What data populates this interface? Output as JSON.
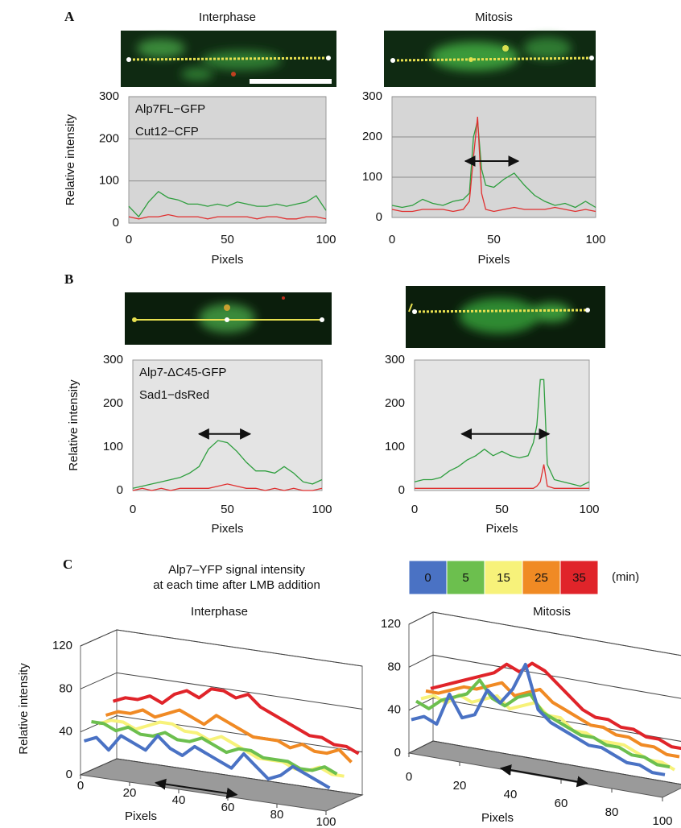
{
  "panel_labels": [
    "A",
    "B",
    "C"
  ],
  "panel_c_header": {
    "title": [
      "Alp7–YFP signal intensity",
      "at each time after LMB addition"
    ],
    "legend_unit": "(min)"
  },
  "chart_data": [
    {
      "type": "line",
      "title": "Interphase",
      "x_label": "Pixels",
      "y_label": "Relative intensity",
      "x": [
        0,
        5,
        10,
        15,
        20,
        25,
        30,
        35,
        40,
        45,
        50,
        55,
        60,
        65,
        70,
        75,
        80,
        85,
        90,
        95,
        100
      ],
      "xlim": [
        0,
        100
      ],
      "xticks": [
        0,
        50,
        100
      ],
      "ylim": [
        0,
        300
      ],
      "yticks": [
        0,
        100,
        200,
        300
      ],
      "grid": true,
      "legend": "upper left",
      "series": [
        {
          "name": "Alp7FL−GFP",
          "color": "#2e9e3e",
          "values": [
            40,
            15,
            50,
            75,
            60,
            55,
            45,
            45,
            40,
            45,
            40,
            50,
            45,
            40,
            40,
            45,
            40,
            45,
            50,
            65,
            30
          ]
        },
        {
          "name": "Cut12−CFP",
          "color": "#e03030",
          "values": [
            15,
            10,
            15,
            15,
            20,
            15,
            15,
            15,
            10,
            15,
            15,
            15,
            15,
            10,
            15,
            15,
            10,
            10,
            15,
            15,
            10
          ]
        }
      ]
    },
    {
      "type": "line",
      "title": "Mitosis",
      "x_label": "Pixels",
      "x": [
        0,
        5,
        10,
        15,
        20,
        25,
        30,
        35,
        38,
        40,
        42,
        44,
        46,
        50,
        55,
        60,
        65,
        70,
        75,
        80,
        85,
        90,
        95,
        100
      ],
      "xlim": [
        0,
        100
      ],
      "xticks": [
        0,
        50,
        100
      ],
      "ylim": [
        0,
        300
      ],
      "yticks": [
        0,
        100,
        200,
        300
      ],
      "grid": true,
      "range_arrow": {
        "x": [
          36,
          62
        ],
        "y": 140
      },
      "series": [
        {
          "color": "#2e9e3e",
          "values": [
            30,
            25,
            30,
            45,
            35,
            30,
            40,
            45,
            60,
            200,
            240,
            120,
            80,
            75,
            95,
            110,
            80,
            55,
            40,
            30,
            35,
            25,
            40,
            25
          ]
        },
        {
          "color": "#e03030",
          "values": [
            20,
            15,
            15,
            20,
            20,
            20,
            15,
            20,
            40,
            150,
            250,
            60,
            20,
            15,
            20,
            25,
            20,
            20,
            20,
            25,
            20,
            15,
            20,
            15
          ]
        }
      ]
    },
    {
      "type": "line",
      "x_label": "Pixels",
      "y_label": "Relative intensity",
      "x": [
        0,
        5,
        10,
        15,
        20,
        25,
        30,
        35,
        40,
        45,
        50,
        55,
        60,
        65,
        70,
        75,
        80,
        85,
        90,
        95,
        100
      ],
      "xlim": [
        0,
        100
      ],
      "xticks": [
        0,
        50,
        100
      ],
      "ylim": [
        0,
        300
      ],
      "yticks": [
        0,
        100,
        200,
        300
      ],
      "grid": false,
      "legend": "upper left",
      "range_arrow": {
        "x": [
          35,
          62
        ],
        "y": 130
      },
      "series": [
        {
          "name": "Alp7-ΔC45-GFP",
          "color": "#2e9e3e",
          "values": [
            5,
            10,
            15,
            20,
            25,
            30,
            40,
            55,
            95,
            115,
            110,
            90,
            65,
            45,
            45,
            40,
            55,
            40,
            20,
            15,
            25
          ]
        },
        {
          "name": "Sad1−dsRed",
          "color": "#e03030",
          "values": [
            0,
            5,
            0,
            5,
            0,
            5,
            5,
            5,
            5,
            10,
            15,
            10,
            5,
            5,
            0,
            5,
            0,
            5,
            0,
            0,
            5
          ]
        }
      ]
    },
    {
      "type": "line",
      "x_label": "Pixels",
      "x": [
        0,
        5,
        10,
        15,
        20,
        25,
        30,
        35,
        40,
        45,
        50,
        55,
        60,
        65,
        68,
        70,
        72,
        74,
        76,
        80,
        85,
        90,
        95,
        100
      ],
      "xlim": [
        0,
        100
      ],
      "xticks": [
        0,
        50,
        100
      ],
      "ylim": [
        0,
        300
      ],
      "yticks": [
        0,
        100,
        200,
        300
      ],
      "grid": false,
      "range_arrow": {
        "x": [
          27,
          77
        ],
        "y": 130
      },
      "series": [
        {
          "color": "#2e9e3e",
          "values": [
            20,
            25,
            25,
            30,
            45,
            55,
            70,
            80,
            95,
            80,
            90,
            80,
            75,
            80,
            110,
            150,
            255,
            255,
            60,
            25,
            20,
            15,
            10,
            20
          ]
        },
        {
          "color": "#e03030",
          "values": [
            5,
            5,
            5,
            5,
            5,
            5,
            5,
            5,
            5,
            5,
            5,
            5,
            5,
            5,
            5,
            10,
            20,
            60,
            10,
            5,
            5,
            5,
            5,
            5
          ]
        }
      ]
    },
    {
      "type": "line3d",
      "title": "Interphase",
      "x_label": "Pixels",
      "y_label": "Relative intensity",
      "x": [
        0,
        5,
        10,
        15,
        20,
        25,
        30,
        35,
        40,
        45,
        50,
        55,
        60,
        65,
        70,
        75,
        80,
        85,
        90,
        95,
        100
      ],
      "xlim": [
        0,
        100
      ],
      "xticks": [
        0,
        20,
        40,
        60,
        80,
        100
      ],
      "ylim": [
        0,
        120
      ],
      "yticks": [
        0,
        40,
        80,
        120
      ],
      "grid": true,
      "range_arrow": {
        "x": [
          24,
          57
        ]
      },
      "series": [
        {
          "name": "0",
          "color": "#4a72c4",
          "values": [
            30,
            35,
            25,
            40,
            35,
            30,
            45,
            35,
            30,
            40,
            35,
            30,
            25,
            40,
            30,
            20,
            25,
            35,
            30,
            25,
            20
          ]
        },
        {
          "name": "5",
          "color": "#6cbf4e",
          "values": [
            45,
            45,
            40,
            45,
            40,
            40,
            45,
            40,
            40,
            45,
            40,
            35,
            40,
            40,
            35,
            35,
            35,
            30,
            30,
            35,
            30
          ]
        },
        {
          "name": "15",
          "color": "#f7f27a",
          "values": [
            40,
            45,
            45,
            40,
            45,
            50,
            50,
            45,
            45,
            40,
            45,
            40,
            35,
            30,
            30,
            30,
            25,
            25,
            30,
            25,
            25
          ]
        },
        {
          "name": "25",
          "color": "#f08a24",
          "values": [
            45,
            50,
            50,
            55,
            50,
            55,
            60,
            55,
            50,
            60,
            55,
            50,
            45,
            45,
            45,
            40,
            45,
            40,
            40,
            45,
            35
          ]
        },
        {
          "name": "35",
          "color": "#e0242a",
          "values": [
            55,
            60,
            60,
            65,
            60,
            70,
            75,
            70,
            80,
            80,
            75,
            80,
            70,
            65,
            60,
            55,
            50,
            50,
            45,
            45,
            40
          ]
        }
      ]
    },
    {
      "type": "line3d",
      "title": "Mitosis",
      "x_label": "Pixels",
      "x": [
        0,
        5,
        10,
        15,
        20,
        25,
        30,
        35,
        40,
        45,
        50,
        55,
        60,
        65,
        70,
        75,
        80,
        85,
        90,
        95,
        100
      ],
      "xlim": [
        0,
        100
      ],
      "xticks": [
        0,
        20,
        40,
        60,
        80,
        100
      ],
      "ylim": [
        0,
        120
      ],
      "yticks": [
        0,
        40,
        80,
        120
      ],
      "grid": true,
      "range_arrow": {
        "x": [
          32,
          66
        ]
      },
      "series": [
        {
          "color": "#4a72c4",
          "values": [
            30,
            35,
            30,
            60,
            40,
            45,
            70,
            60,
            75,
            100,
            60,
            50,
            45,
            40,
            35,
            35,
            30,
            25,
            25,
            20,
            20
          ]
        },
        {
          "color": "#6cbf4e",
          "values": [
            45,
            40,
            50,
            55,
            60,
            75,
            60,
            55,
            65,
            70,
            55,
            50,
            45,
            40,
            40,
            35,
            35,
            30,
            30,
            25,
            25
          ]
        },
        {
          "color": "#f7f27a",
          "values": [
            45,
            50,
            45,
            55,
            50,
            55,
            60,
            50,
            55,
            60,
            50,
            50,
            40,
            40,
            35,
            35,
            35,
            30,
            25,
            25,
            20
          ]
        },
        {
          "color": "#f08a24",
          "values": [
            50,
            50,
            55,
            60,
            60,
            65,
            70,
            60,
            65,
            70,
            60,
            55,
            50,
            45,
            45,
            40,
            40,
            35,
            35,
            30,
            30
          ]
        },
        {
          "color": "#e0242a",
          "values": [
            50,
            55,
            60,
            65,
            70,
            75,
            85,
            80,
            90,
            85,
            75,
            65,
            55,
            50,
            50,
            45,
            45,
            40,
            40,
            35,
            35
          ]
        }
      ]
    }
  ]
}
